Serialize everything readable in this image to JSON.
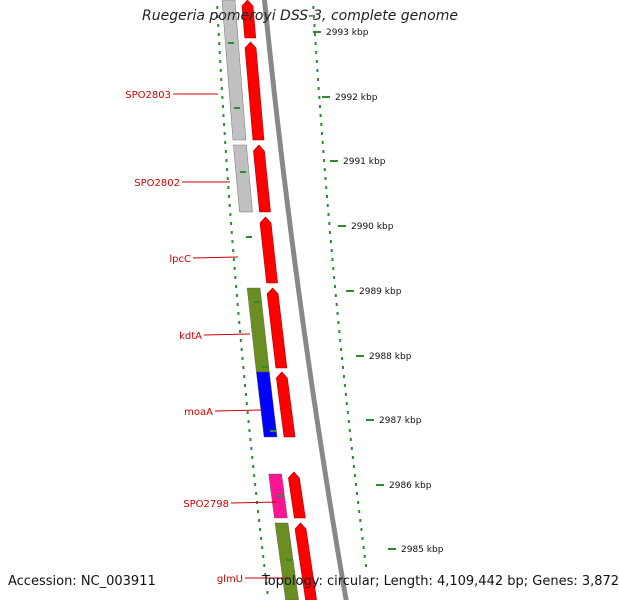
{
  "title": "Ruegeria pomeroyi DSS-3, complete genome",
  "footer": {
    "accession": "Accession: NC_003911",
    "stats": "Topology: circular; Length: 4,109,442 bp; Genes: 3,872"
  },
  "colors": {
    "tick": "#2e8b2e",
    "backbone": "#888888",
    "cds_forward": "#ff0000",
    "label": "#cc0000"
  },
  "ticks": [
    {
      "label": "2993 kbp"
    },
    {
      "label": "2992 kbp"
    },
    {
      "label": "2991 kbp"
    },
    {
      "label": "2990 kbp"
    },
    {
      "label": "2989 kbp"
    },
    {
      "label": "2988 kbp"
    },
    {
      "label": "2987 kbp"
    },
    {
      "label": "2986 kbp"
    },
    {
      "label": "2985 kbp"
    }
  ],
  "genes": [
    {
      "name": "SPO2803",
      "color": "#c0c0c0"
    },
    {
      "name": "SPO2802",
      "color": "#c0c0c0"
    },
    {
      "name": "lpcC",
      "color": null
    },
    {
      "name": "kdtA",
      "color": "#6b8e23"
    },
    {
      "name": "moaA",
      "color": "#0000ff"
    },
    {
      "name": "SPO2798",
      "color": "#ff1493"
    },
    {
      "name": "glmU",
      "color": "#6b8e23"
    }
  ]
}
